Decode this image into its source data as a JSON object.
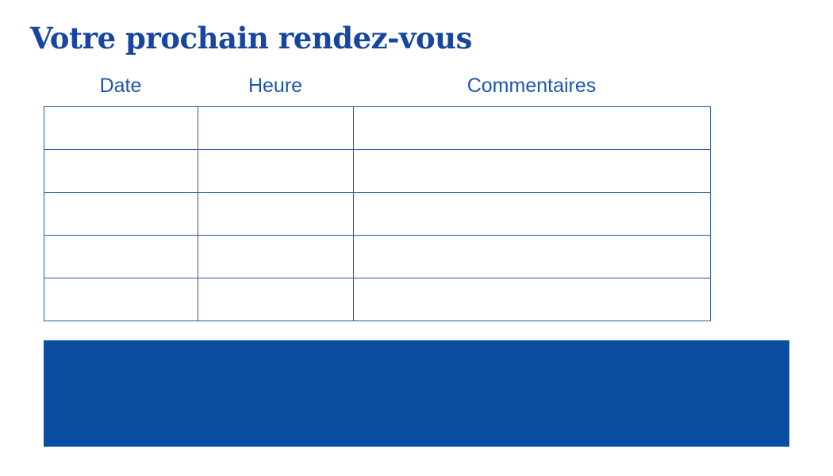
{
  "page": {
    "title": "Votre prochain rendez-vous"
  },
  "colors": {
    "title": "#17469E",
    "header_text": "#1E56A7",
    "table_border": "#2A5AA8",
    "footer_block": "#0A4DA1"
  },
  "table": {
    "columns": [
      "Date",
      "Heure",
      "Commentaires"
    ],
    "rows": [
      {
        "date": "",
        "heure": "",
        "commentaires": ""
      },
      {
        "date": "",
        "heure": "",
        "commentaires": ""
      },
      {
        "date": "",
        "heure": "",
        "commentaires": ""
      },
      {
        "date": "",
        "heure": "",
        "commentaires": ""
      },
      {
        "date": "",
        "heure": "",
        "commentaires": ""
      }
    ]
  }
}
